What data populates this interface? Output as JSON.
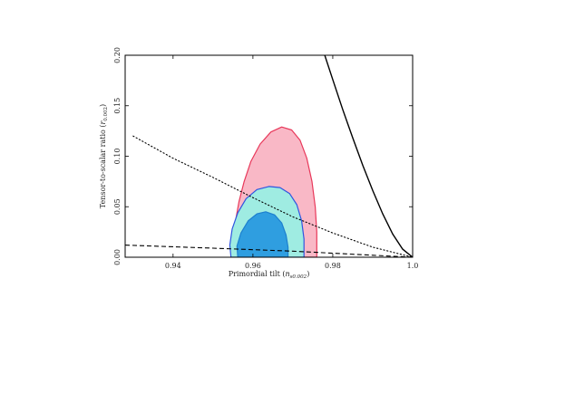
{
  "chart_data": {
    "type": "contour",
    "xlabel": "Primordial tilt (n_s0.002)",
    "xlabel_main": "Primordial tilt (",
    "xlabel_sym": "n",
    "xlabel_sub": "s0.002",
    "xlabel_close": ")",
    "ylabel": "Tensor-to-scalar ratio (r0.002)",
    "ylabel_main": "Tensor-to-scalar ratio (",
    "ylabel_sym": "r",
    "ylabel_sub": "0.002",
    "ylabel_close": ")",
    "xlim": [
      0.928,
      1.0
    ],
    "ylim": [
      0.0,
      0.2
    ],
    "grid": false,
    "x_ticks": [
      {
        "value": 0.94,
        "label": "0.94"
      },
      {
        "value": 0.96,
        "label": "0.96"
      },
      {
        "value": 0.98,
        "label": "0.98"
      },
      {
        "value": 1.0,
        "label": "1.0"
      }
    ],
    "y_ticks": [
      {
        "value": 0.0,
        "label": "0.00"
      },
      {
        "value": 0.05,
        "label": "0.05"
      },
      {
        "value": 0.1,
        "label": "0.10"
      },
      {
        "value": 0.15,
        "label": "0.15"
      },
      {
        "value": 0.2,
        "label": "0.20"
      }
    ],
    "regions": [
      {
        "key": "outer",
        "fill": "#f9b8c6",
        "stroke": "#e8385a",
        "points": [
          [
            0.9555,
            0.0
          ],
          [
            0.9552,
            0.016
          ],
          [
            0.9556,
            0.035
          ],
          [
            0.9565,
            0.055
          ],
          [
            0.9578,
            0.075
          ],
          [
            0.9595,
            0.095
          ],
          [
            0.9618,
            0.112
          ],
          [
            0.9645,
            0.124
          ],
          [
            0.9672,
            0.129
          ],
          [
            0.9697,
            0.126
          ],
          [
            0.9718,
            0.116
          ],
          [
            0.9735,
            0.098
          ],
          [
            0.9748,
            0.075
          ],
          [
            0.9756,
            0.05
          ],
          [
            0.976,
            0.025
          ],
          [
            0.976,
            0.0
          ]
        ]
      },
      {
        "key": "middle",
        "fill": "#9fece2",
        "stroke": "#2f55e0",
        "points": [
          [
            0.9545,
            0.0
          ],
          [
            0.9542,
            0.012
          ],
          [
            0.9548,
            0.028
          ],
          [
            0.9562,
            0.044
          ],
          [
            0.9583,
            0.058
          ],
          [
            0.961,
            0.067
          ],
          [
            0.964,
            0.07
          ],
          [
            0.9668,
            0.069
          ],
          [
            0.9692,
            0.063
          ],
          [
            0.971,
            0.052
          ],
          [
            0.9722,
            0.036
          ],
          [
            0.9728,
            0.018
          ],
          [
            0.9728,
            0.0
          ]
        ]
      },
      {
        "key": "inner",
        "fill": "#2f9ee0",
        "stroke": "#1d7fcf",
        "points": [
          [
            0.9562,
            0.0
          ],
          [
            0.956,
            0.011
          ],
          [
            0.957,
            0.024
          ],
          [
            0.9588,
            0.036
          ],
          [
            0.961,
            0.043
          ],
          [
            0.9632,
            0.045
          ],
          [
            0.9654,
            0.042
          ],
          [
            0.9672,
            0.034
          ],
          [
            0.9683,
            0.022
          ],
          [
            0.9688,
            0.01
          ],
          [
            0.9688,
            0.0
          ]
        ]
      }
    ],
    "lines": [
      {
        "key": "solid",
        "style": "solid",
        "color": "#000000",
        "points": [
          [
            0.978,
            0.2
          ],
          [
            0.98,
            0.176
          ],
          [
            0.9825,
            0.146
          ],
          [
            0.985,
            0.118
          ],
          [
            0.9875,
            0.091
          ],
          [
            0.99,
            0.066
          ],
          [
            0.9925,
            0.043
          ],
          [
            0.995,
            0.023
          ],
          [
            0.9975,
            0.008
          ],
          [
            1.0,
            0.0
          ]
        ]
      },
      {
        "key": "dotted",
        "style": "dotted",
        "color": "#000000",
        "points": [
          [
            0.93,
            0.12
          ],
          [
            0.94,
            0.098
          ],
          [
            0.95,
            0.079
          ],
          [
            0.96,
            0.059
          ],
          [
            0.97,
            0.04
          ],
          [
            0.98,
            0.024
          ],
          [
            0.99,
            0.01
          ],
          [
            1.0,
            0.0
          ]
        ]
      },
      {
        "key": "dashed",
        "style": "dashed",
        "color": "#000000",
        "points": [
          [
            0.928,
            0.012
          ],
          [
            0.95,
            0.009
          ],
          [
            0.97,
            0.006
          ],
          [
            0.99,
            0.002
          ],
          [
            1.0,
            0.0
          ]
        ]
      }
    ]
  }
}
